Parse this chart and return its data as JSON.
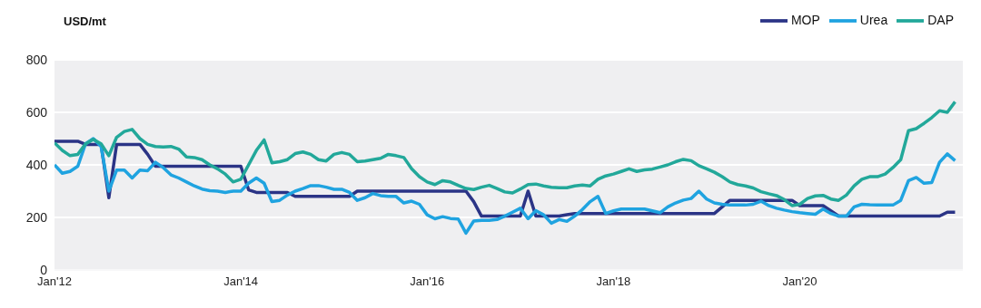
{
  "chart_data": {
    "type": "line",
    "ylabel": "USD/mt",
    "x": [
      "2012-01",
      "2012-02",
      "2012-03",
      "2012-04",
      "2012-05",
      "2012-06",
      "2012-07",
      "2012-08",
      "2012-09",
      "2012-10",
      "2012-11",
      "2012-12",
      "2013-01",
      "2013-02",
      "2013-03",
      "2013-04",
      "2013-05",
      "2013-06",
      "2013-07",
      "2013-08",
      "2013-09",
      "2013-10",
      "2013-11",
      "2013-12",
      "2014-01",
      "2014-02",
      "2014-03",
      "2014-04",
      "2014-05",
      "2014-06",
      "2014-07",
      "2014-08",
      "2014-09",
      "2014-10",
      "2014-11",
      "2014-12",
      "2015-01",
      "2015-02",
      "2015-03",
      "2015-04",
      "2015-05",
      "2015-06",
      "2015-07",
      "2015-08",
      "2015-09",
      "2015-10",
      "2015-11",
      "2015-12",
      "2016-01",
      "2016-02",
      "2016-03",
      "2016-04",
      "2016-05",
      "2016-06",
      "2016-07",
      "2016-08",
      "2016-09",
      "2016-10",
      "2016-11",
      "2016-12",
      "2017-01",
      "2017-02",
      "2017-03",
      "2017-04",
      "2017-05",
      "2017-06",
      "2017-07",
      "2017-08",
      "2017-09",
      "2017-10",
      "2017-11",
      "2017-12",
      "2018-01",
      "2018-02",
      "2018-03",
      "2018-04",
      "2018-05",
      "2018-06",
      "2018-07",
      "2018-08",
      "2018-09",
      "2018-10",
      "2018-11",
      "2018-12",
      "2019-01",
      "2019-02",
      "2019-03",
      "2019-04",
      "2019-05",
      "2019-06",
      "2019-07",
      "2019-08",
      "2019-09",
      "2019-10",
      "2019-11",
      "2019-12",
      "2020-01",
      "2020-02",
      "2020-03",
      "2020-04",
      "2020-05",
      "2020-06",
      "2020-07",
      "2020-08",
      "2020-09",
      "2020-10",
      "2020-11",
      "2020-12",
      "2021-01",
      "2021-02",
      "2021-03",
      "2021-04",
      "2021-05",
      "2021-06",
      "2021-07",
      "2021-08",
      "2021-09"
    ],
    "series": [
      {
        "name": "MOP",
        "color": "#2b3486",
        "values": [
          490,
          490,
          490,
          490,
          478,
          478,
          478,
          275,
          478,
          478,
          478,
          478,
          440,
          395,
          395,
          395,
          395,
          395,
          395,
          395,
          395,
          395,
          395,
          395,
          395,
          305,
          295,
          295,
          295,
          295,
          295,
          280,
          280,
          280,
          280,
          280,
          280,
          280,
          280,
          300,
          300,
          300,
          300,
          300,
          300,
          300,
          300,
          300,
          300,
          300,
          300,
          300,
          300,
          300,
          260,
          205,
          205,
          205,
          205,
          205,
          205,
          300,
          205,
          205,
          205,
          205,
          210,
          215,
          215,
          215,
          215,
          215,
          215,
          215,
          215,
          215,
          215,
          215,
          215,
          215,
          215,
          215,
          215,
          215,
          215,
          215,
          240,
          265,
          265,
          265,
          265,
          265,
          265,
          265,
          265,
          265,
          245,
          245,
          245,
          245,
          225,
          205,
          205,
          205,
          205,
          205,
          205,
          205,
          205,
          205,
          205,
          205,
          205,
          205,
          205,
          220,
          220
        ]
      },
      {
        "name": "Urea",
        "color": "#1fa3e0",
        "values": [
          400,
          368,
          375,
          395,
          480,
          500,
          470,
          300,
          380,
          380,
          350,
          380,
          378,
          410,
          390,
          362,
          350,
          335,
          320,
          308,
          302,
          300,
          295,
          300,
          300,
          330,
          350,
          330,
          260,
          265,
          285,
          300,
          310,
          321,
          321,
          315,
          307,
          307,
          295,
          265,
          275,
          291,
          283,
          280,
          280,
          255,
          262,
          250,
          210,
          195,
          203,
          196,
          194,
          140,
          186,
          189,
          189,
          192,
          205,
          220,
          235,
          195,
          226,
          210,
          178,
          192,
          185,
          205,
          230,
          260,
          280,
          215,
          225,
          232,
          232,
          232,
          232,
          225,
          218,
          240,
          255,
          266,
          272,
          300,
          270,
          255,
          250,
          247,
          247,
          247,
          250,
          262,
          245,
          235,
          228,
          222,
          218,
          215,
          212,
          232,
          215,
          205,
          205,
          240,
          250,
          248,
          247,
          247,
          247,
          265,
          340,
          352,
          330,
          333,
          410,
          442,
          416
        ]
      },
      {
        "name": "DAP",
        "color": "#22a89a",
        "values": [
          484,
          455,
          435,
          440,
          480,
          497,
          480,
          435,
          505,
          527,
          535,
          500,
          478,
          470,
          468,
          470,
          460,
          430,
          428,
          420,
          400,
          385,
          365,
          335,
          345,
          400,
          455,
          495,
          408,
          412,
          420,
          443,
          449,
          440,
          420,
          415,
          440,
          447,
          440,
          412,
          415,
          420,
          425,
          440,
          435,
          428,
          385,
          355,
          335,
          325,
          340,
          335,
          322,
          310,
          306,
          315,
          322,
          310,
          297,
          293,
          308,
          325,
          327,
          320,
          315,
          313,
          313,
          320,
          323,
          320,
          345,
          358,
          365,
          375,
          385,
          375,
          381,
          384,
          392,
          400,
          412,
          421,
          416,
          397,
          385,
          372,
          355,
          335,
          325,
          320,
          312,
          298,
          290,
          283,
          268,
          245,
          250,
          272,
          282,
          284,
          270,
          265,
          285,
          320,
          345,
          355,
          355,
          365,
          390,
          420,
          530,
          538,
          558,
          580,
          606,
          600,
          640
        ]
      }
    ],
    "xlim": [
      "2012-01",
      "2021-10"
    ],
    "xticks": [
      {
        "value": "2012-01",
        "label": "Jan'12"
      },
      {
        "value": "2014-01",
        "label": "Jan'14"
      },
      {
        "value": "2016-01",
        "label": "Jan'16"
      },
      {
        "value": "2018-01",
        "label": "Jan'18"
      },
      {
        "value": "2020-01",
        "label": "Jan'20"
      }
    ],
    "ylim": [
      0,
      800
    ],
    "yticks": [
      0,
      200,
      400,
      600,
      800
    ],
    "grid": "y",
    "legend": "top right"
  }
}
